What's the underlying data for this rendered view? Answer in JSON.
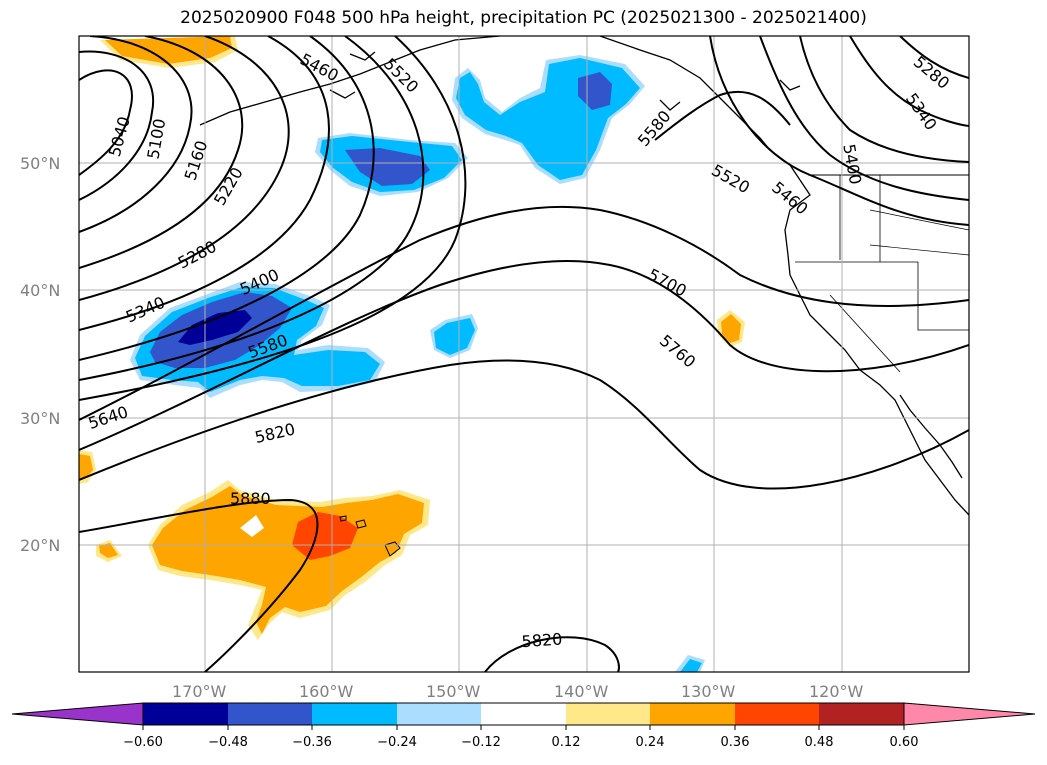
{
  "title": "2025020900 F048 500 hPa height, precipitation PC (2025021300 - 2025021400)",
  "latitude_labels": [
    "50°N",
    "40°N",
    "30°N",
    "20°N"
  ],
  "longitude_labels": [
    "170°W",
    "160°W",
    "150°W",
    "140°W",
    "130°W",
    "120°W"
  ],
  "contour_labels": [
    "5040",
    "5100",
    "5160",
    "5220",
    "5280",
    "5340",
    "5400",
    "5460",
    "5520",
    "5580",
    "5640",
    "5700",
    "5760",
    "5820",
    "5880",
    "5820",
    "5580",
    "5520",
    "5460",
    "5400",
    "5340",
    "5280"
  ],
  "colorbar": {
    "tick_labels": [
      "−0.60",
      "−0.48",
      "−0.36",
      "−0.24",
      "−0.12",
      "0.12",
      "0.24",
      "0.36",
      "0.48",
      "0.60"
    ],
    "colors": [
      "#9933cc",
      "#000099",
      "#3355cc",
      "#00bbff",
      "#aaddff",
      "#ffffff",
      "#ffe88a",
      "#ffa500",
      "#ff4500",
      "#b22222",
      "#ff88aa"
    ]
  },
  "colors": {
    "strong_negative": "#000099",
    "negative": "#3355cc",
    "moderate_negative": "#00bbff",
    "weak_negative": "#aaddff",
    "weak_positive": "#ffe88a",
    "positive": "#ffa500",
    "strong_positive": "#ff4500",
    "contour": "#000000",
    "grid": "#b0b0b0"
  }
}
